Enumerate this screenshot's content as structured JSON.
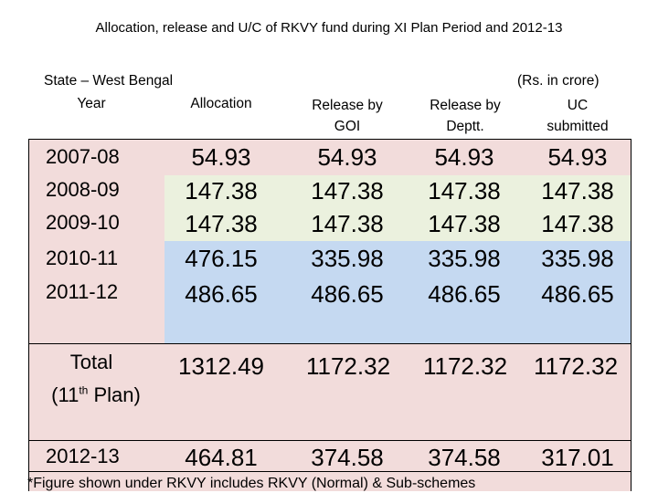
{
  "title": "Allocation, release and U/C of RKVY fund during XI Plan Period and 2012-13",
  "state_label": "State – West Bengal",
  "units_label": "(Rs. in crore)",
  "headers": {
    "year": "Year",
    "allocation": "Allocation",
    "release_goi_1": "Release by",
    "release_goi_2": "GOI",
    "release_deptt_1": "Release by",
    "release_deptt_2": "Deptt.",
    "uc_1": "UC",
    "uc_2": "submitted"
  },
  "rows": [
    {
      "year": "2007-08",
      "allocation": "54.93",
      "release_goi": "54.93",
      "release_deptt": "54.93",
      "uc": "54.93"
    },
    {
      "year": "2008-09",
      "allocation": "147.38",
      "release_goi": "147.38",
      "release_deptt": "147.38",
      "uc": "147.38"
    },
    {
      "year": "2009-10",
      "allocation": "147.38",
      "release_goi": "147.38",
      "release_deptt": "147.38",
      "uc": "147.38"
    },
    {
      "year": "2010-11",
      "allocation": "476.15",
      "release_goi": "335.98",
      "release_deptt": "335.98",
      "uc": "335.98"
    },
    {
      "year": "2011-12",
      "allocation": "486.65",
      "release_goi": "486.65",
      "release_deptt": "486.65",
      "uc": "486.65"
    }
  ],
  "total": {
    "label_line1": "Total",
    "label_line2_pre": "(11",
    "label_line2_sup": "th",
    "label_line2_post": " Plan)",
    "allocation": "1312.49",
    "release_goi": "1172.32",
    "release_deptt": "1172.32",
    "uc": "1172.32"
  },
  "year_2012": {
    "year": "2012-13",
    "allocation": "464.81",
    "release_goi": "374.58",
    "release_deptt": "374.58",
    "uc": "317.01"
  },
  "footnote": "*Figure shown under RKVY includes RKVY (Normal) & Sub-schemes",
  "colors": {
    "pink": "#f2dcdb",
    "green": "#ebf1de",
    "blue": "#c5d9f1",
    "line": "#000000"
  }
}
